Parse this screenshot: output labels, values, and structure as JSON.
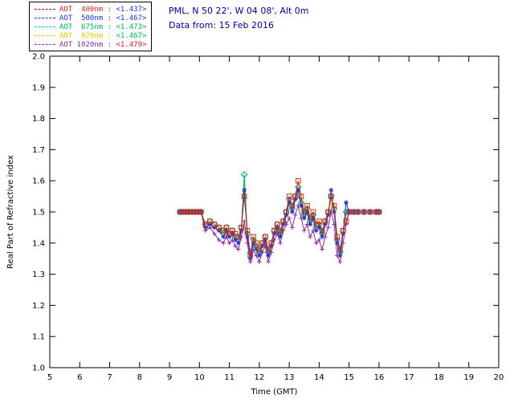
{
  "header": {
    "location_line": "PML, N 50 22', W 04 08', Alt 0m",
    "date_line": "Data from: 15 Feb 2016",
    "text_color": "#000090"
  },
  "legend": {
    "entries": [
      {
        "label": "AOT  400nm :",
        "value": "<1.437>",
        "label_color": "#cc2222",
        "value_color": "#2233cc",
        "line_color": "#aa1111"
      },
      {
        "label": "AOT  500nm :",
        "value": "<1.467>",
        "label_color": "#2233cc",
        "value_color": "#2233cc",
        "line_color": "#2233cc"
      },
      {
        "label": "AOT  675nm :",
        "value": "<1.473>",
        "label_color": "#00b060",
        "value_color": "#00b060",
        "line_color": "#00c896"
      },
      {
        "label": "AOT  870nm :",
        "value": "<1.467>",
        "label_color": "#d6cc00",
        "value_color": "#00b060",
        "line_color": "#d6cc00"
      },
      {
        "label": "AOT 1020nm :",
        "value": "<1.479>",
        "label_color": "#8a2b9a",
        "value_color": "#cc2222",
        "line_color": "#8a2b9a"
      }
    ]
  },
  "chart_data": {
    "type": "line",
    "title": "",
    "xlabel": "Time (GMT)",
    "ylabel": "Real Part of Refractive index",
    "xlim": [
      5,
      20
    ],
    "ylim": [
      1.0,
      2.0
    ],
    "xticks": [
      5,
      6,
      7,
      8,
      9,
      10,
      11,
      12,
      13,
      14,
      15,
      16,
      17,
      18,
      19,
      20
    ],
    "yticks": [
      1.0,
      1.1,
      1.2,
      1.3,
      1.4,
      1.5,
      1.6,
      1.7,
      1.8,
      1.9,
      2.0
    ],
    "grid": false,
    "legend_position": "top-left",
    "x": [
      9.35,
      9.45,
      9.55,
      9.65,
      9.75,
      9.85,
      9.95,
      10.05,
      10.2,
      10.35,
      10.5,
      10.65,
      10.8,
      10.9,
      11.0,
      11.1,
      11.2,
      11.3,
      11.4,
      11.5,
      11.6,
      11.7,
      11.8,
      11.9,
      12.0,
      12.1,
      12.2,
      12.3,
      12.4,
      12.5,
      12.6,
      12.7,
      12.8,
      12.9,
      13.0,
      13.1,
      13.2,
      13.3,
      13.4,
      13.5,
      13.6,
      13.7,
      13.8,
      13.9,
      14.0,
      14.1,
      14.2,
      14.3,
      14.4,
      14.5,
      14.6,
      14.7,
      14.8,
      14.9,
      15.0,
      15.15,
      15.3,
      15.5,
      15.7,
      15.9,
      16.0
    ],
    "draw_order": [
      3,
      2,
      1,
      4,
      0
    ],
    "series": [
      {
        "name": "AOT 400nm",
        "color": "#c2301c",
        "marker": "square",
        "values": [
          1.5,
          1.5,
          1.5,
          1.5,
          1.5,
          1.5,
          1.5,
          1.5,
          1.46,
          1.47,
          1.46,
          1.45,
          1.44,
          1.45,
          1.43,
          1.44,
          1.43,
          1.42,
          1.45,
          1.55,
          1.44,
          1.36,
          1.42,
          1.4,
          1.38,
          1.4,
          1.42,
          1.38,
          1.4,
          1.44,
          1.46,
          1.44,
          1.47,
          1.5,
          1.55,
          1.52,
          1.55,
          1.6,
          1.55,
          1.5,
          1.52,
          1.48,
          1.5,
          1.46,
          1.47,
          1.44,
          1.47,
          1.5,
          1.55,
          1.52,
          1.42,
          1.38,
          1.44,
          1.47,
          1.5,
          1.5,
          1.5,
          1.5,
          1.5,
          1.5,
          1.5
        ]
      },
      {
        "name": "AOT 500nm",
        "color": "#2233cc",
        "marker": "asterisk",
        "values": [
          1.5,
          1.5,
          1.5,
          1.5,
          1.5,
          1.5,
          1.5,
          1.5,
          1.45,
          1.46,
          1.45,
          1.44,
          1.42,
          1.44,
          1.42,
          1.43,
          1.41,
          1.4,
          1.44,
          1.57,
          1.42,
          1.35,
          1.4,
          1.38,
          1.36,
          1.39,
          1.41,
          1.36,
          1.39,
          1.43,
          1.45,
          1.42,
          1.46,
          1.49,
          1.53,
          1.5,
          1.54,
          1.57,
          1.52,
          1.48,
          1.5,
          1.46,
          1.48,
          1.44,
          1.45,
          1.42,
          1.46,
          1.49,
          1.57,
          1.5,
          1.4,
          1.36,
          1.43,
          1.53,
          1.5,
          1.5,
          1.5,
          1.5,
          1.5,
          1.5,
          1.5
        ]
      },
      {
        "name": "AOT 675nm",
        "color": "#00b060",
        "marker": "diamond",
        "values": [
          1.5,
          1.5,
          1.5,
          1.5,
          1.5,
          1.5,
          1.5,
          1.5,
          1.46,
          1.47,
          1.46,
          1.45,
          1.43,
          1.45,
          1.43,
          1.44,
          1.42,
          1.41,
          1.45,
          1.62,
          1.43,
          1.37,
          1.41,
          1.39,
          1.37,
          1.4,
          1.42,
          1.37,
          1.4,
          1.44,
          1.46,
          1.43,
          1.47,
          1.5,
          1.54,
          1.51,
          1.55,
          1.58,
          1.53,
          1.49,
          1.51,
          1.47,
          1.49,
          1.45,
          1.46,
          1.43,
          1.47,
          1.5,
          1.55,
          1.51,
          1.41,
          1.37,
          1.44,
          1.5,
          1.5,
          1.5,
          1.5,
          1.5,
          1.5,
          1.5,
          1.5
        ]
      },
      {
        "name": "AOT 870nm",
        "color": "#d6cc00",
        "marker": "none",
        "values": [
          1.5,
          1.5,
          1.5,
          1.5,
          1.5,
          1.5,
          1.5,
          1.5,
          1.46,
          1.46,
          1.45,
          1.44,
          1.43,
          1.44,
          1.42,
          1.43,
          1.41,
          1.4,
          1.44,
          1.6,
          1.42,
          1.36,
          1.4,
          1.38,
          1.36,
          1.39,
          1.41,
          1.36,
          1.39,
          1.43,
          1.45,
          1.42,
          1.46,
          1.49,
          1.53,
          1.5,
          1.54,
          1.57,
          1.52,
          1.48,
          1.5,
          1.46,
          1.48,
          1.44,
          1.45,
          1.42,
          1.46,
          1.49,
          1.54,
          1.5,
          1.4,
          1.36,
          1.43,
          1.49,
          1.5,
          1.5,
          1.5,
          1.5,
          1.5,
          1.5,
          1.5
        ]
      },
      {
        "name": "AOT 1020nm",
        "color": "#8a2b9a",
        "marker": "plus",
        "values": [
          1.5,
          1.5,
          1.5,
          1.5,
          1.5,
          1.5,
          1.5,
          1.5,
          1.44,
          1.45,
          1.43,
          1.41,
          1.4,
          1.42,
          1.4,
          1.41,
          1.39,
          1.38,
          1.42,
          1.47,
          1.4,
          1.34,
          1.38,
          1.36,
          1.34,
          1.37,
          1.39,
          1.34,
          1.37,
          1.41,
          1.43,
          1.4,
          1.44,
          1.46,
          1.48,
          1.45,
          1.49,
          1.52,
          1.48,
          1.44,
          1.46,
          1.42,
          1.44,
          1.4,
          1.41,
          1.38,
          1.42,
          1.45,
          1.5,
          1.46,
          1.36,
          1.34,
          1.4,
          1.46,
          1.5,
          1.5,
          1.5,
          1.5,
          1.5,
          1.5,
          1.5
        ]
      }
    ]
  }
}
